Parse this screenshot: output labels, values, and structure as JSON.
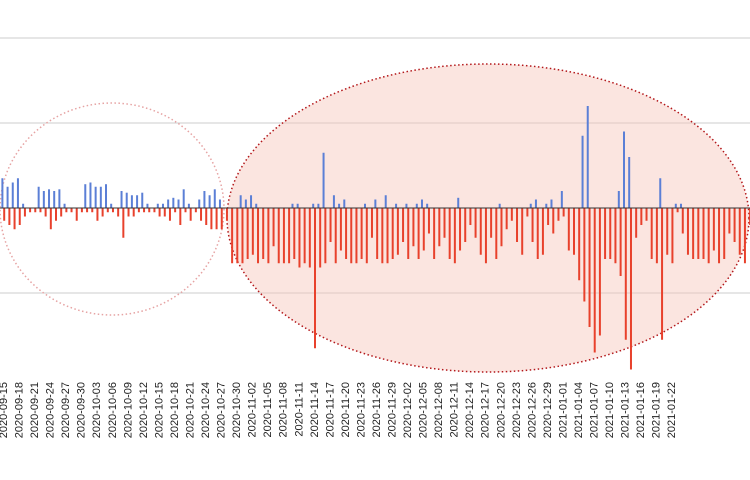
{
  "chart_data": {
    "type": "bar",
    "title": "",
    "xlabel": "",
    "ylabel": "",
    "ylim": [
      -1.85,
      2.05
    ],
    "grid": true,
    "legend": "none",
    "colors": {
      "positive": "#5b7fd6",
      "negative": "#e8412c",
      "ellipse_stroke_left": "#e6a3a3",
      "ellipse_stroke_right": "#b3171a",
      "ellipse_fill_right": "#f7c5ba"
    },
    "tick_labels": [
      "2020-09-15",
      "2020-09-18",
      "2020-09-21",
      "2020-09-24",
      "2020-09-27",
      "2020-09-30",
      "2020-10-03",
      "2020-10-06",
      "2020-10-09",
      "2020-10-12",
      "2020-10-15",
      "2020-10-18",
      "2020-10-21",
      "2020-10-24",
      "2020-10-27",
      "2020-10-30",
      "2020-11-02",
      "2020-11-05",
      "2020-11-08",
      "2020-11-11",
      "2020-11-14",
      "2020-11-17",
      "2020-11-20",
      "2020-11-23",
      "2020-11-26",
      "2020-11-29",
      "2020-12-02",
      "2020-12-05",
      "2020-12-08",
      "2020-12-11",
      "2020-12-14",
      "2020-12-17",
      "2020-12-20",
      "2020-12-23",
      "2020-12-26",
      "2020-12-29",
      "2021-01-01",
      "2021-01-04",
      "2021-01-07",
      "2021-01-10",
      "2021-01-13",
      "2021-01-16",
      "2021-01-19",
      "2021-01-22"
    ],
    "start_date": "2020-09-15",
    "series": [
      {
        "values": [
          0.35,
          0.25,
          0.3,
          0.35,
          0.05,
          0,
          0,
          0.25,
          0.2,
          0.22,
          0.2,
          0.22,
          0.05,
          0,
          0,
          0,
          0.28,
          0.3,
          0.25,
          0.25,
          0.28,
          0.05,
          0,
          0.2,
          0.18,
          0.15,
          0.15,
          0.18,
          0.05,
          0,
          0.05,
          0.05,
          0.1,
          0.12,
          0.1,
          0.22,
          0.05,
          0,
          0.1,
          0.2,
          0.15,
          0.22,
          0.1,
          0,
          0,
          0,
          0.15,
          0.1,
          0.15,
          0.05,
          0,
          0,
          0,
          0,
          0,
          0,
          0.05,
          0.05,
          0,
          0,
          0.05,
          0.05,
          0.65,
          0,
          0.15,
          0.05,
          0.1,
          0,
          0,
          0,
          0.05,
          0,
          0.1,
          0,
          0.15,
          0,
          0.05,
          0,
          0.05,
          0,
          0.05,
          0.1,
          0.05,
          0,
          0,
          0,
          0,
          0,
          0.12,
          0,
          0,
          0,
          0,
          0,
          0,
          0,
          0.05,
          0,
          0,
          0,
          0,
          0,
          0.05,
          0.1,
          0,
          0.05,
          0.1,
          0,
          0.2,
          0,
          0,
          0,
          0.85,
          1.2,
          0,
          0,
          0,
          0,
          0,
          0.2,
          0.9,
          0.6,
          0,
          0,
          0,
          0,
          0,
          0.35,
          0,
          0,
          0.05,
          0.05,
          0,
          0,
          0,
          0,
          0,
          0,
          0,
          0,
          0,
          0,
          0,
          0,
          0,
          0,
          0,
          0,
          0,
          0,
          0
        ]
      },
      {
        "values": [
          -0.15,
          -0.2,
          -0.25,
          -0.2,
          -0.1,
          -0.05,
          -0.05,
          -0.05,
          -0.1,
          -0.25,
          -0.15,
          -0.1,
          -0.05,
          -0.05,
          -0.15,
          -0.05,
          -0.05,
          -0.05,
          -0.15,
          -0.1,
          -0.05,
          -0.05,
          -0.1,
          -0.35,
          -0.1,
          -0.1,
          -0.05,
          -0.05,
          -0.05,
          -0.05,
          -0.1,
          -0.1,
          -0.15,
          -0.05,
          -0.2,
          -0.05,
          -0.15,
          -0.05,
          -0.15,
          -0.2,
          -0.25,
          -0.25,
          -0.25,
          -0.15,
          -0.65,
          -0.65,
          -0.65,
          -0.6,
          -0.55,
          -0.65,
          -0.6,
          -0.65,
          -0.45,
          -0.65,
          -0.65,
          -0.65,
          -0.6,
          -0.7,
          -0.65,
          -0.7,
          -1.65,
          -0.7,
          -0.65,
          -0.4,
          -0.65,
          -0.5,
          -0.6,
          -0.65,
          -0.65,
          -0.6,
          -0.65,
          -0.35,
          -0.6,
          -0.65,
          -0.65,
          -0.6,
          -0.55,
          -0.4,
          -0.6,
          -0.45,
          -0.6,
          -0.5,
          -0.3,
          -0.6,
          -0.45,
          -0.35,
          -0.6,
          -0.65,
          -0.5,
          -0.4,
          -0.2,
          -0.35,
          -0.55,
          -0.65,
          -0.35,
          -0.6,
          -0.45,
          -0.25,
          -0.15,
          -0.4,
          -0.55,
          -0.1,
          -0.4,
          -0.6,
          -0.55,
          -0.2,
          -0.3,
          -0.15,
          -0.1,
          -0.5,
          -0.55,
          -0.85,
          -1.1,
          -1.4,
          -1.7,
          -1.5,
          -0.6,
          -0.6,
          -0.65,
          -0.8,
          -1.55,
          -1.9,
          -0.35,
          -0.2,
          -0.15,
          -0.6,
          -0.65,
          -1.55,
          -0.55,
          -0.65,
          -0.05,
          -0.3,
          -0.55,
          -0.6,
          -0.6,
          -0.6,
          -0.65,
          -0.5,
          -0.65,
          -0.6,
          -0.3,
          -0.4,
          -0.55,
          -0.65,
          -0.2
        ]
      }
    ]
  }
}
